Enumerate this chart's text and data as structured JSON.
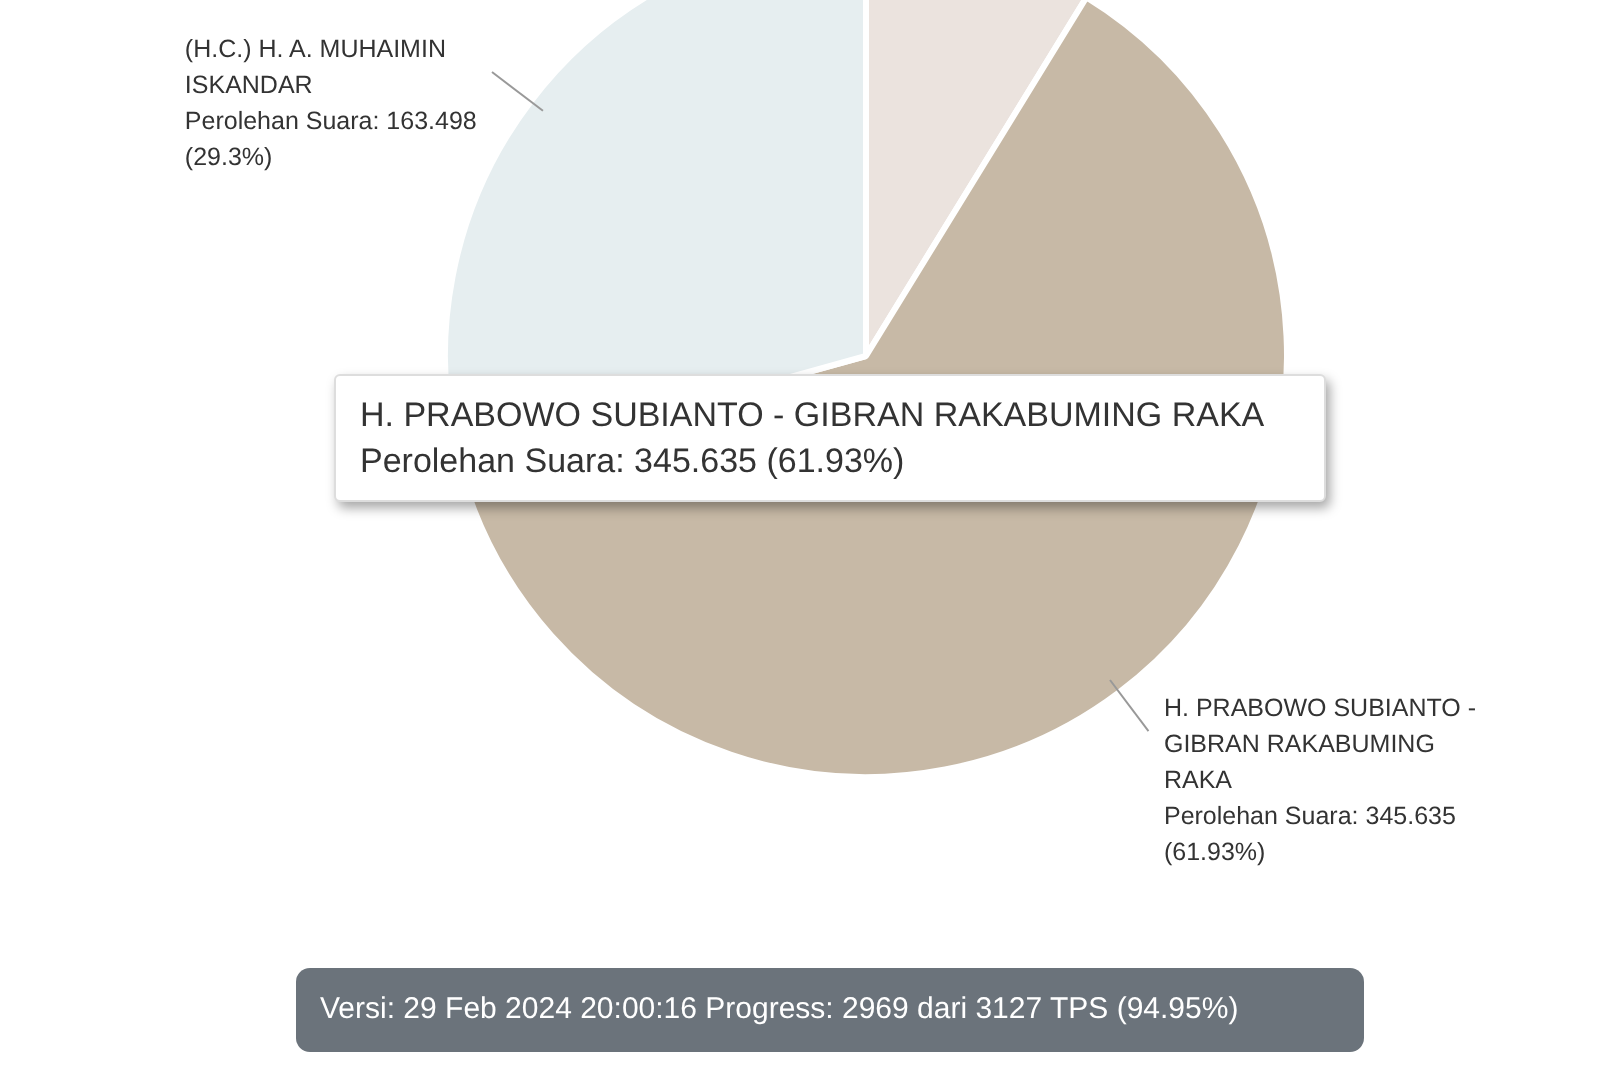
{
  "chart_data": {
    "type": "pie",
    "categories": [
      null,
      "H. PRABOWO SUBIANTO - GIBRAN RAKABUMING RAKA",
      "(H.C.) H. A. MUHAIMIN ISKANDAR"
    ],
    "values": [
      8.77,
      61.93,
      29.3
    ],
    "colors": [
      "#ebe3de",
      "#c7b9a6",
      "#e6eef0"
    ],
    "value_labels": [
      null,
      "Perolehan Suara: 345.635 (61.93%)",
      "Perolehan Suara: 163.498 (29.3%)"
    ],
    "legend": false,
    "annotations": [
      "H. PRABOWO SUBIANTO - GIBRAN RAKABUMING RAKA\nPerolehan Suara: 345.635 (61.93%)",
      "Versi: 29 Feb 2024 20:00:16 Progress: 2969 dari 3127 TPS (94.95%)"
    ]
  }
}
